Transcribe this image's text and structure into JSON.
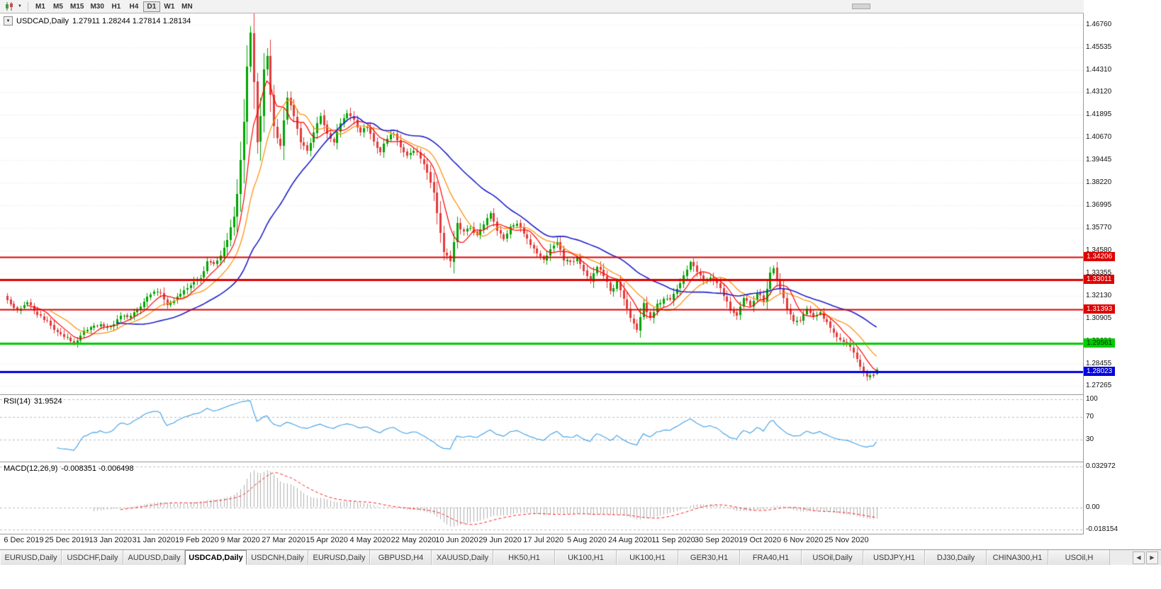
{
  "toolbar": {
    "timeframes": [
      "M1",
      "M5",
      "M15",
      "M30",
      "H1",
      "H4",
      "D1",
      "W1",
      "MN"
    ],
    "active_timeframe": "D1",
    "dropdown_icon": "▼"
  },
  "chart": {
    "symbol": "USDCAD,Daily",
    "open": "1.27911",
    "high": "1.28244",
    "low": "1.27814",
    "close": "1.28134",
    "ohlc_display": "1.27911 1.28244 1.27814 1.28134",
    "collapse_icon": "▼"
  },
  "price_axis": [
    "1.46760",
    "1.45535",
    "1.44310",
    "1.43120",
    "1.41895",
    "1.40670",
    "1.39445",
    "1.38220",
    "1.36995",
    "1.35770",
    "1.34580",
    "1.33355",
    "1.32130",
    "1.30905",
    "1.29680",
    "1.28455",
    "1.27265"
  ],
  "hlines": [
    {
      "price": 1.34206,
      "label": "1.34206",
      "color": "#dd0000",
      "width": 2,
      "text_color": "#ffffff"
    },
    {
      "price": 1.33011,
      "label": "1.33011",
      "color": "#dd0000",
      "width": 3,
      "text_color": "#ffffff"
    },
    {
      "price": 1.31393,
      "label": "1.31393",
      "color": "#dd0000",
      "width": 2,
      "text_color": "#ffffff"
    },
    {
      "price": 1.29561,
      "label": "1.29561",
      "color": "#00cc00",
      "width": 3,
      "text_color": "#003300"
    },
    {
      "price": 1.28023,
      "label": "1.28023",
      "color": "#0000dd",
      "width": 3,
      "text_color": "#ffffff"
    }
  ],
  "indicators": {
    "rsi": {
      "label": "RSI(14)",
      "value": "31.9524",
      "axis": [
        "100",
        "70",
        "30"
      ],
      "levels": [
        100,
        70,
        30
      ]
    },
    "macd": {
      "label": "MACD(12,26,9)",
      "values": "-0.008351 -0.006498",
      "axis": [
        "0.032972",
        "0.00",
        "-0.018154"
      ],
      "levels": [
        0.032972,
        0,
        -0.018154
      ]
    }
  },
  "time_axis": [
    "6 Dec 2019",
    "25 Dec 2019",
    "13 Jan 2020",
    "31 Jan 2020",
    "19 Feb 2020",
    "9 Mar 2020",
    "27 Mar 2020",
    "15 Apr 2020",
    "4 May 2020",
    "22 May 2020",
    "10 Jun 2020",
    "29 Jun 2020",
    "17 Jul 2020",
    "5 Aug 2020",
    "24 Aug 2020",
    "11 Sep 2020",
    "30 Sep 2020",
    "19 Oct 2020",
    "6 Nov 2020",
    "25 Nov 2020"
  ],
  "tabbar": {
    "tabs": [
      "EURUSD,Daily",
      "USDCHF,Daily",
      "AUDUSD,Daily",
      "USDCAD,Daily",
      "USDCNH,Daily",
      "EURUSD,Daily",
      "GBPUSD,H4",
      "XAUUSD,Daily",
      "HK50,H1",
      "UK100,H1",
      "UK100,H1",
      "GER30,H1",
      "FRA40,H1",
      "USOil,Daily",
      "USDJPY,H1",
      "DJ30,Daily",
      "CHINA300,H1",
      "USOil,H"
    ],
    "active_index": 3,
    "left_arrow": "◀",
    "right_arrow": "▶"
  },
  "chart_data": {
    "type": "candlestick",
    "symbol": "USDCAD",
    "timeframe": "Daily",
    "count": 262,
    "price_range": [
      1.268,
      1.4737
    ],
    "last_ohlc": [
      1.27911,
      1.28244,
      1.27814,
      1.28134
    ],
    "tick_indices": [
      5,
      18,
      31,
      44,
      57,
      70,
      83,
      96,
      109,
      122,
      135,
      148,
      161,
      174,
      187,
      200,
      213,
      226,
      239,
      252
    ],
    "waypoints": [
      [
        0,
        1.318
      ],
      [
        3,
        1.315
      ],
      [
        6,
        1.3165
      ],
      [
        9,
        1.311
      ],
      [
        12,
        1.308
      ],
      [
        15,
        1.302
      ],
      [
        18,
        1.298
      ],
      [
        20,
        1.2962
      ],
      [
        22,
        1.3
      ],
      [
        25,
        1.304
      ],
      [
        28,
        1.3058
      ],
      [
        31,
        1.304
      ],
      [
        34,
        1.3095
      ],
      [
        37,
        1.311
      ],
      [
        40,
        1.316
      ],
      [
        43,
        1.322
      ],
      [
        46,
        1.3235
      ],
      [
        48,
        1.316
      ],
      [
        50,
        1.3185
      ],
      [
        53,
        1.323
      ],
      [
        56,
        1.329
      ],
      [
        58,
        1.332
      ],
      [
        60,
        1.34
      ],
      [
        62,
        1.339
      ],
      [
        64,
        1.342
      ],
      [
        66,
        1.352
      ],
      [
        68,
        1.365
      ],
      [
        69,
        1.376
      ],
      [
        70,
        1.395
      ],
      [
        71,
        1.415
      ],
      [
        72,
        1.445
      ],
      [
        73,
        1.464
      ],
      [
        74,
        1.437
      ],
      [
        75,
        1.404
      ],
      [
        76,
        1.418
      ],
      [
        77,
        1.444
      ],
      [
        78,
        1.451
      ],
      [
        79,
        1.43
      ],
      [
        80,
        1.414
      ],
      [
        82,
        1.402
      ],
      [
        84,
        1.428
      ],
      [
        86,
        1.418
      ],
      [
        88,
        1.405
      ],
      [
        90,
        1.4
      ],
      [
        92,
        1.409
      ],
      [
        94,
        1.418
      ],
      [
        96,
        1.408
      ],
      [
        98,
        1.403
      ],
      [
        100,
        1.414
      ],
      [
        102,
        1.421
      ],
      [
        104,
        1.416
      ],
      [
        106,
        1.409
      ],
      [
        108,
        1.413
      ],
      [
        110,
        1.406
      ],
      [
        112,
        1.399
      ],
      [
        114,
        1.406
      ],
      [
        116,
        1.409
      ],
      [
        118,
        1.402
      ],
      [
        120,
        1.398
      ],
      [
        122,
        1.4
      ],
      [
        124,
        1.396
      ],
      [
        126,
        1.389
      ],
      [
        128,
        1.377
      ],
      [
        130,
        1.356
      ],
      [
        131,
        1.345
      ],
      [
        133,
        1.34
      ],
      [
        135,
        1.362
      ],
      [
        137,
        1.356
      ],
      [
        139,
        1.358
      ],
      [
        141,
        1.353
      ],
      [
        143,
        1.36
      ],
      [
        145,
        1.365
      ],
      [
        147,
        1.357
      ],
      [
        149,
        1.353
      ],
      [
        151,
        1.358
      ],
      [
        153,
        1.361
      ],
      [
        155,
        1.356
      ],
      [
        157,
        1.35
      ],
      [
        159,
        1.345
      ],
      [
        161,
        1.341
      ],
      [
        163,
        1.347
      ],
      [
        165,
        1.352
      ],
      [
        167,
        1.341
      ],
      [
        169,
        1.339
      ],
      [
        171,
        1.342
      ],
      [
        173,
        1.335
      ],
      [
        175,
        1.33
      ],
      [
        177,
        1.338
      ],
      [
        179,
        1.332
      ],
      [
        181,
        1.324
      ],
      [
        183,
        1.329
      ],
      [
        185,
        1.319
      ],
      [
        187,
        1.308
      ],
      [
        189,
        1.303
      ],
      [
        191,
        1.318
      ],
      [
        193,
        1.309
      ],
      [
        195,
        1.316
      ],
      [
        197,
        1.32
      ],
      [
        199,
        1.318
      ],
      [
        201,
        1.324
      ],
      [
        203,
        1.333
      ],
      [
        205,
        1.339
      ],
      [
        207,
        1.335
      ],
      [
        209,
        1.33
      ],
      [
        211,
        1.332
      ],
      [
        213,
        1.328
      ],
      [
        215,
        1.321
      ],
      [
        217,
        1.314
      ],
      [
        219,
        1.312
      ],
      [
        221,
        1.319
      ],
      [
        223,
        1.315
      ],
      [
        225,
        1.322
      ],
      [
        227,
        1.318
      ],
      [
        229,
        1.333
      ],
      [
        230,
        1.336
      ],
      [
        232,
        1.325
      ],
      [
        234,
        1.315
      ],
      [
        236,
        1.307
      ],
      [
        238,
        1.309
      ],
      [
        240,
        1.313
      ],
      [
        242,
        1.309
      ],
      [
        244,
        1.311
      ],
      [
        246,
        1.306
      ],
      [
        248,
        1.301
      ],
      [
        250,
        1.298
      ],
      [
        252,
        1.295
      ],
      [
        254,
        1.29
      ],
      [
        256,
        1.284
      ],
      [
        258,
        1.277
      ],
      [
        259,
        1.279
      ],
      [
        260,
        1.2785
      ],
      [
        261,
        1.28134
      ]
    ],
    "anchors": [
      [
        73,
        1.4668,
        null
      ],
      [
        20,
        null,
        1.2952
      ],
      [
        258,
        null,
        1.2753
      ]
    ],
    "moving_averages": [
      {
        "period": 14,
        "color": "#ff8c00"
      },
      {
        "period": 7,
        "color": "#ff0000"
      },
      {
        "period": 34,
        "color": "#2020cc"
      }
    ],
    "colors": {
      "bull": "#00a400",
      "bear": "#e23b3b",
      "rsi": "#4da6e8",
      "macd_hist": "#b0b0b0",
      "macd_signal": "#ff2020",
      "grid": "#e6e6e6",
      "level": "#bdbdbd"
    }
  }
}
